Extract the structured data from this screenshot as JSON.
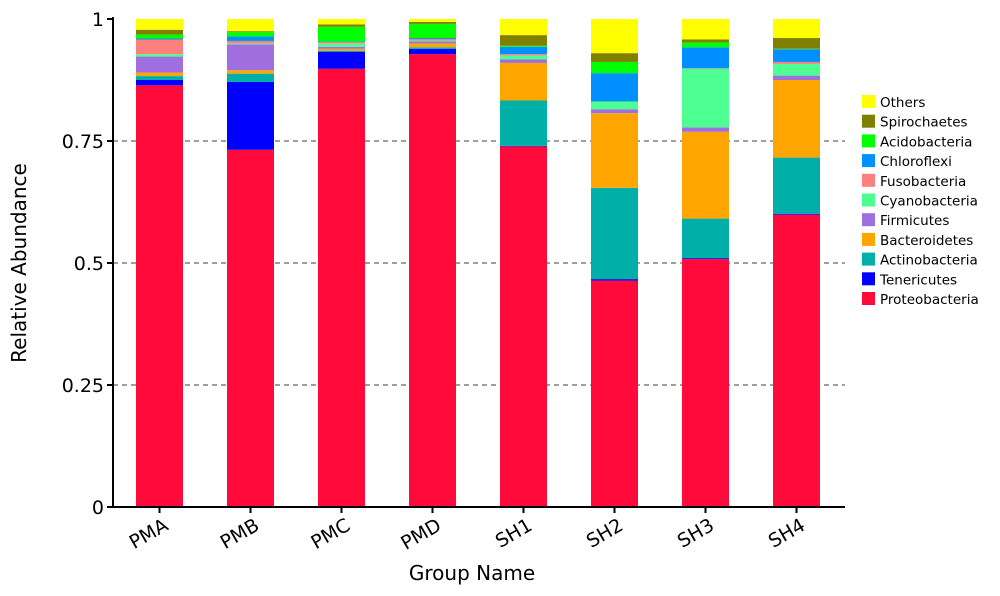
{
  "chart_data": {
    "type": "bar",
    "stacked": true,
    "title": "",
    "xlabel": "Group Name",
    "ylabel": "Relative Abundance",
    "ylim": [
      0,
      1
    ],
    "yticks": [
      "0",
      "0.25",
      "0.5",
      "0.75",
      "1"
    ],
    "ytick_values": [
      0,
      0.25,
      0.5,
      0.75,
      1
    ],
    "grid": "horizontal dashed at 0.25, 0.5, 0.75",
    "legend_position": "right",
    "categories": [
      "PMA",
      "PMB",
      "PMC",
      "PMD",
      "SH1",
      "SH2",
      "SH3",
      "SH4"
    ],
    "series": [
      {
        "name": "Proteobacteria",
        "color": "#FF0A3A",
        "values": [
          0.864,
          0.732,
          0.898,
          0.928,
          0.739,
          0.464,
          0.508,
          0.599
        ]
      },
      {
        "name": "Tenericutes",
        "color": "#0000FF",
        "values": [
          0.011,
          0.139,
          0.035,
          0.011,
          0.001,
          0.003,
          0.002,
          0.002
        ]
      },
      {
        "name": "Actinobacteria",
        "color": "#00B0A8",
        "values": [
          0.008,
          0.017,
          0.002,
          0.003,
          0.093,
          0.187,
          0.081,
          0.115
        ]
      },
      {
        "name": "Bacteroidetes",
        "color": "#FFA500",
        "values": [
          0.007,
          0.007,
          0.004,
          0.008,
          0.077,
          0.153,
          0.178,
          0.159
        ]
      },
      {
        "name": "Firmicutes",
        "color": "#9F6FDF",
        "values": [
          0.033,
          0.053,
          0.004,
          0.004,
          0.007,
          0.008,
          0.009,
          0.009
        ]
      },
      {
        "name": "Cyanobacteria",
        "color": "#4CFF90",
        "values": [
          0.005,
          0.002,
          0.007,
          0.002,
          0.008,
          0.016,
          0.12,
          0.024
        ]
      },
      {
        "name": "Fusobacteria",
        "color": "#FF7F7F",
        "values": [
          0.03,
          0.005,
          0.003,
          0.003,
          0.003,
          0.0,
          0.001,
          0.004
        ]
      },
      {
        "name": "Chloroflexi",
        "color": "#0090FF",
        "values": [
          0.002,
          0.009,
          0.001,
          0.002,
          0.015,
          0.058,
          0.043,
          0.026
        ]
      },
      {
        "name": "Acidobacteria",
        "color": "#00FF00",
        "values": [
          0.008,
          0.009,
          0.03,
          0.029,
          0.002,
          0.023,
          0.01,
          0.001
        ]
      },
      {
        "name": "Spirochaetes",
        "color": "#808000",
        "values": [
          0.01,
          0.002,
          0.005,
          0.004,
          0.022,
          0.018,
          0.006,
          0.022
        ]
      },
      {
        "name": "Others",
        "color": "#FFFF00",
        "values": [
          0.022,
          0.025,
          0.011,
          0.006,
          0.033,
          0.07,
          0.042,
          0.039
        ]
      }
    ]
  }
}
